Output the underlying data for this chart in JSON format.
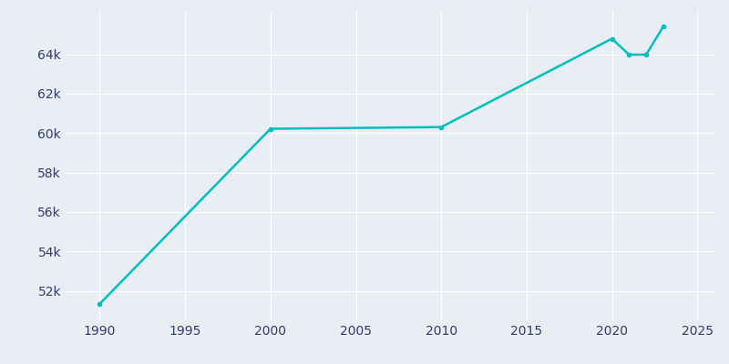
{
  "years": [
    1990,
    2000,
    2010,
    2020,
    2021,
    2022,
    2023
  ],
  "population": [
    51337,
    60220,
    60306,
    64791,
    63981,
    63981,
    65400
  ],
  "line_color": "#00BFBF",
  "bg_color": "#E8EEF4",
  "axes_bg_color": "#E8EEF4",
  "tick_color": "#2E3B6E",
  "grid_color": "#FFFFFF",
  "xlim": [
    1988,
    2026
  ],
  "ylim": [
    50500,
    66200
  ],
  "xticks": [
    1990,
    1995,
    2000,
    2005,
    2010,
    2015,
    2020,
    2025
  ],
  "yticks": [
    52000,
    54000,
    56000,
    58000,
    60000,
    62000,
    64000
  ],
  "figsize": [
    8.0,
    4.0
  ],
  "dpi": 100,
  "linewidth": 1.8
}
